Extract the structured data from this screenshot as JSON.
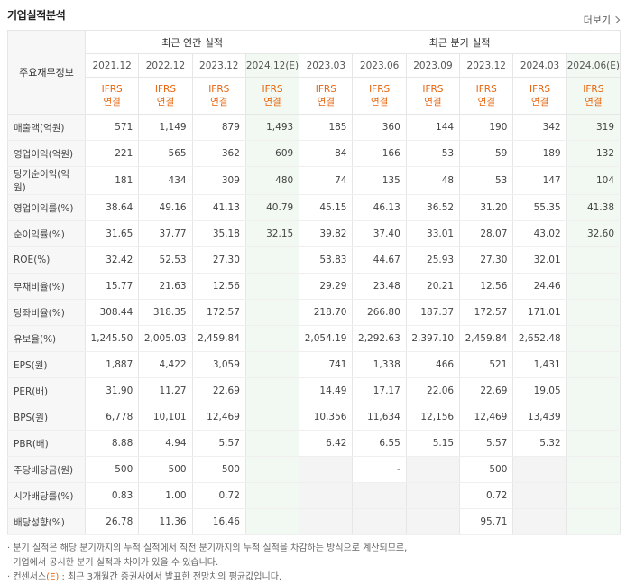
{
  "title": "기업실적분석",
  "more_label": "더보기",
  "header": {
    "row_label": "주요재무정보",
    "annual_group": "최근 연간 실적",
    "quarter_group": "최근 분기 실적",
    "periods": [
      "2021.12",
      "2022.12",
      "2023.12",
      "2024.12(E)",
      "2023.03",
      "2023.06",
      "2023.09",
      "2023.12",
      "2024.03",
      "2024.06(E)"
    ],
    "ifrs_top": "IFRS",
    "ifrs_bottom": "연결"
  },
  "rows": [
    {
      "label": "매출액(억원)",
      "values": [
        "571",
        "1,149",
        "879",
        "1,493",
        "185",
        "360",
        "144",
        "190",
        "342",
        "319"
      ]
    },
    {
      "label": "영업이익(억원)",
      "values": [
        "221",
        "565",
        "362",
        "609",
        "84",
        "166",
        "53",
        "59",
        "189",
        "132"
      ]
    },
    {
      "label": "당기순이익(억원)",
      "values": [
        "181",
        "434",
        "309",
        "480",
        "74",
        "135",
        "48",
        "53",
        "147",
        "104"
      ]
    },
    {
      "label": "영업이익률(%)",
      "values": [
        "38.64",
        "49.16",
        "41.13",
        "40.79",
        "45.15",
        "46.13",
        "36.52",
        "31.20",
        "55.35",
        "41.38"
      ]
    },
    {
      "label": "순이익률(%)",
      "values": [
        "31.65",
        "37.77",
        "35.18",
        "32.15",
        "39.82",
        "37.40",
        "33.01",
        "28.07",
        "43.02",
        "32.60"
      ]
    },
    {
      "label": "ROE(%)",
      "values": [
        "32.42",
        "52.53",
        "27.30",
        "",
        "53.83",
        "44.67",
        "25.93",
        "27.30",
        "32.01",
        ""
      ]
    },
    {
      "label": "부채비율(%)",
      "values": [
        "15.77",
        "21.63",
        "12.56",
        "",
        "29.29",
        "23.48",
        "20.21",
        "12.56",
        "24.46",
        ""
      ]
    },
    {
      "label": "당좌비율(%)",
      "values": [
        "308.44",
        "318.35",
        "172.57",
        "",
        "218.70",
        "266.80",
        "187.37",
        "172.57",
        "171.01",
        ""
      ]
    },
    {
      "label": "유보율(%)",
      "values": [
        "1,245.50",
        "2,005.03",
        "2,459.84",
        "",
        "2,054.19",
        "2,292.63",
        "2,397.10",
        "2,459.84",
        "2,652.48",
        ""
      ]
    },
    {
      "label": "EPS(원)",
      "values": [
        "1,887",
        "4,422",
        "3,059",
        "",
        "741",
        "1,338",
        "466",
        "521",
        "1,431",
        ""
      ]
    },
    {
      "label": "PER(배)",
      "values": [
        "31.90",
        "11.27",
        "22.69",
        "",
        "14.49",
        "17.17",
        "22.06",
        "22.69",
        "19.05",
        ""
      ]
    },
    {
      "label": "BPS(원)",
      "values": [
        "6,778",
        "10,101",
        "12,469",
        "",
        "10,356",
        "11,634",
        "12,156",
        "12,469",
        "13,439",
        ""
      ]
    },
    {
      "label": "PBR(배)",
      "values": [
        "8.88",
        "4.94",
        "5.57",
        "",
        "6.42",
        "6.55",
        "5.15",
        "5.57",
        "5.32",
        ""
      ]
    },
    {
      "label": "주당배당금(원)",
      "values": [
        "500",
        "500",
        "500",
        "",
        "",
        "-",
        "",
        "500",
        "",
        ""
      ]
    },
    {
      "label": "시가배당률(%)",
      "values": [
        "0.83",
        "1.00",
        "0.72",
        "",
        "",
        "",
        "",
        "0.72",
        "",
        ""
      ]
    },
    {
      "label": "배당성향(%)",
      "values": [
        "26.78",
        "11.36",
        "16.46",
        "",
        "",
        "",
        "",
        "95.71",
        "",
        ""
      ]
    }
  ],
  "notes": {
    "line1": "분기 실적은 해당 분기까지의 누적 실적에서 직전 분기까지의 누적 실적을 차감하는 방식으로 계산되므로,",
    "line2": "기업에서 공시한 분기 실적과 차이가 있을 수 있습니다.",
    "line3_prefix": "컨센서스",
    "line3_mark": "(E)",
    "line3_suffix": ": 최근 3개월간 증권사에서 발표한 전망치의 평균값입니다."
  }
}
